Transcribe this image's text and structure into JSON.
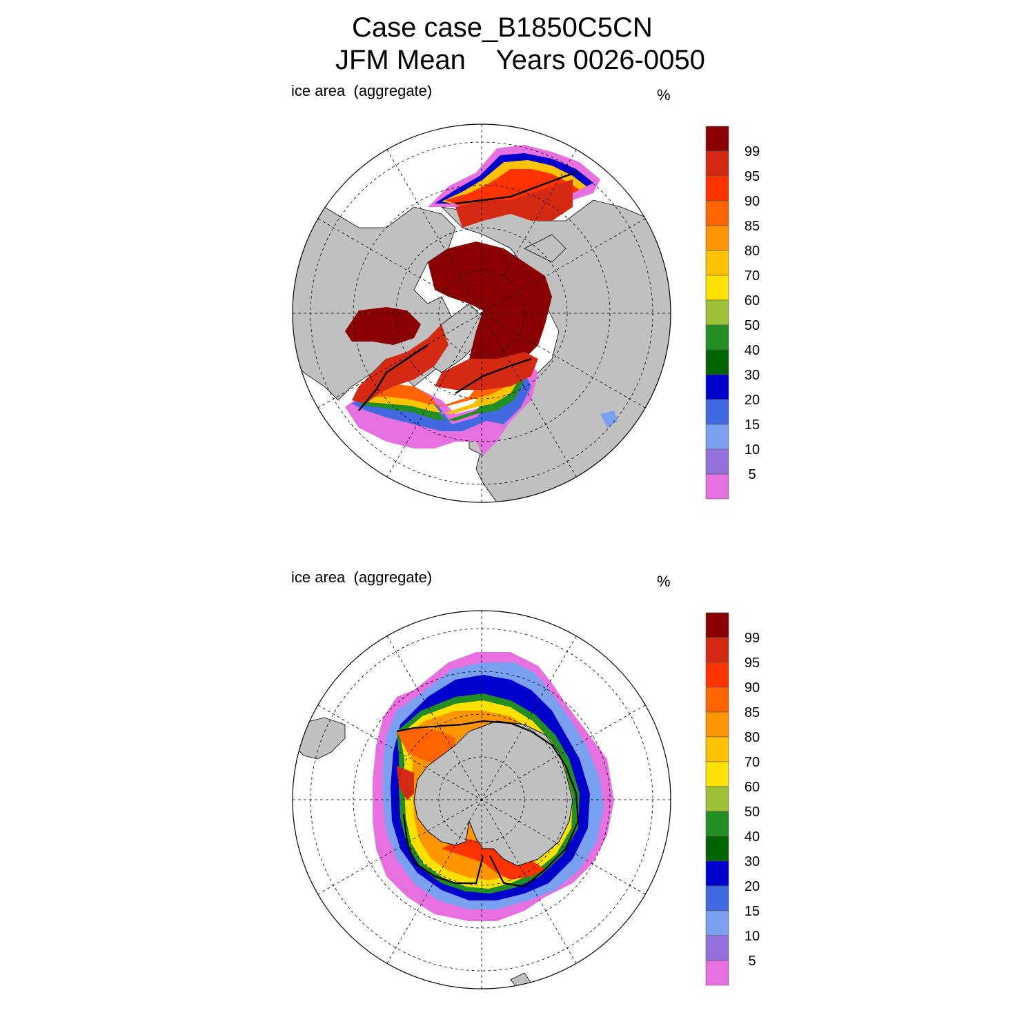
{
  "title": {
    "line1": "Case case_B1850C5CN",
    "line2": "JFM Mean    Years 0026-0050"
  },
  "colorbar_levels": [
    "99",
    "95",
    "90",
    "85",
    "80",
    "70",
    "60",
    "50",
    "40",
    "30",
    "20",
    "15",
    "10",
    "5"
  ],
  "colorbar_colors": [
    "#8b0000",
    "#d42a14",
    "#ff3300",
    "#ff6400",
    "#ff9600",
    "#ffc200",
    "#ffe100",
    "#9bc136",
    "#238e23",
    "#006400",
    "#0000cd",
    "#4169e1",
    "#7aa0f0",
    "#9370db",
    "#e670e0"
  ],
  "land_color": "#c0c0c0",
  "panels": [
    {
      "hemisphere": "north",
      "field_label": "ice area  (aggregate)",
      "units": "%"
    },
    {
      "hemisphere": "south",
      "field_label": "ice area  (aggregate)",
      "units": "%"
    }
  ]
}
